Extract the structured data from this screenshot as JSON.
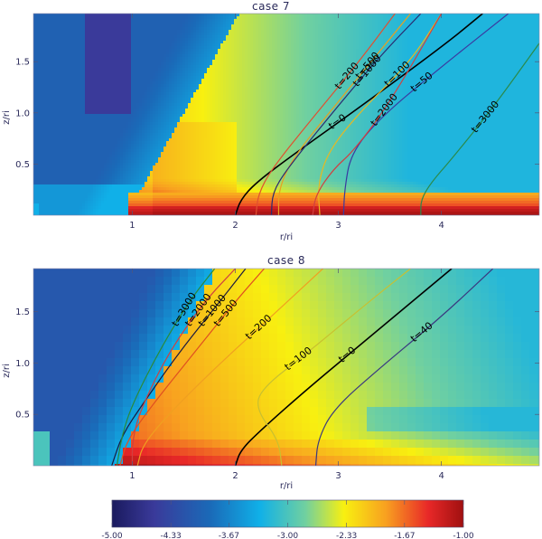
{
  "chart_data": [
    {
      "type": "heatmap",
      "title": "case 7",
      "xlabel": "r/ri",
      "ylabel": "z/ri",
      "xlim": [
        0.04,
        4.95
      ],
      "ylim": [
        0.0,
        1.97
      ],
      "xticks": [
        "1",
        "2",
        "3",
        "4"
      ],
      "xtick_values": [
        1,
        2,
        3,
        4
      ],
      "yticks": [
        "0.5",
        "1.0",
        "1.5"
      ],
      "ytick_values": [
        0.5,
        1.0,
        1.5
      ],
      "field_description": "log-scale color field; blue cone near axis r<1.3 at high z, yellow/orange wedge emanating from r~1, red disk layer z<0.2 for r>1",
      "contours": [
        {
          "label": "t=0",
          "color": "#000000",
          "points": [
            [
              2.0,
              0.0
            ],
            [
              2.05,
              0.15
            ],
            [
              2.2,
              0.32
            ],
            [
              2.6,
              0.62
            ],
            [
              3.2,
              1.05
            ],
            [
              4.05,
              1.68
            ],
            [
              4.4,
              1.97
            ]
          ]
        },
        {
          "label": "t=50",
          "color": "#3a3aa0",
          "points": [
            [
              3.05,
              0.0
            ],
            [
              3.06,
              0.25
            ],
            [
              3.12,
              0.6
            ],
            [
              3.4,
              0.95
            ],
            [
              4.0,
              1.45
            ],
            [
              4.65,
              1.97
            ]
          ]
        },
        {
          "label": "t=100",
          "color": "#e8b820",
          "points": [
            [
              2.82,
              0.0
            ],
            [
              2.8,
              0.3
            ],
            [
              2.9,
              0.62
            ],
            [
              3.2,
              1.0
            ],
            [
              3.7,
              1.5
            ],
            [
              4.0,
              1.97
            ]
          ]
        },
        {
          "label": "t=200",
          "color": "#e05030",
          "points": [
            [
              2.2,
              0.0
            ],
            [
              2.22,
              0.2
            ],
            [
              2.35,
              0.45
            ],
            [
              2.75,
              0.95
            ],
            [
              3.2,
              1.5
            ],
            [
              3.55,
              1.97
            ]
          ]
        },
        {
          "label": "t=500",
          "color": "#e8a020",
          "points": [
            [
              2.42,
              0.0
            ],
            [
              2.42,
              0.25
            ],
            [
              2.55,
              0.55
            ],
            [
              2.95,
              1.05
            ],
            [
              3.4,
              1.6
            ],
            [
              3.7,
              1.97
            ]
          ]
        },
        {
          "label": "t=1000",
          "color": "#2a2a70",
          "points": [
            [
              2.35,
              0.0
            ],
            [
              2.36,
              0.22
            ],
            [
              2.5,
              0.45
            ],
            [
              2.9,
              0.95
            ],
            [
              3.4,
              1.55
            ],
            [
              3.8,
              1.97
            ]
          ]
        },
        {
          "label": "t=2000",
          "color": "#d04040",
          "points": [
            [
              2.75,
              0.0
            ],
            [
              2.78,
              0.2
            ],
            [
              2.95,
              0.45
            ],
            [
              3.15,
              0.63
            ],
            [
              3.5,
              1.1
            ],
            [
              4.0,
              1.97
            ]
          ]
        },
        {
          "label": "t=3000",
          "color": "#2a8a4a",
          "points": [
            [
              3.8,
              0.0
            ],
            [
              3.8,
              0.15
            ],
            [
              3.9,
              0.32
            ],
            [
              4.1,
              0.55
            ],
            [
              4.5,
              1.05
            ],
            [
              4.95,
              1.68
            ]
          ]
        }
      ]
    },
    {
      "type": "heatmap",
      "title": "case 8",
      "xlabel": "r/ri",
      "ylabel": "z/ri",
      "xlim": [
        0.04,
        4.95
      ],
      "ylim": [
        0.0,
        1.92
      ],
      "xticks": [
        "1",
        "2",
        "3",
        "4"
      ],
      "xtick_values": [
        1,
        2,
        3,
        4
      ],
      "yticks": [
        "0.5",
        "1.0",
        "1.5"
      ],
      "ytick_values": [
        0.5,
        1.0,
        1.5
      ],
      "field_description": "coarse-gridded log-scale field; dark blue near axis at high z, yellow/orange/red region for r>1 with red base z<0.3, green-cyan toward large r and z",
      "contours": [
        {
          "label": "t=0",
          "color": "#000000",
          "points": [
            [
              2.0,
              0.0
            ],
            [
              2.05,
              0.15
            ],
            [
              2.25,
              0.35
            ],
            [
              2.7,
              0.75
            ],
            [
              3.3,
              1.25
            ],
            [
              4.1,
              1.92
            ]
          ]
        },
        {
          "label": "t=40",
          "color": "#3a3a80",
          "points": [
            [
              2.78,
              0.0
            ],
            [
              2.8,
              0.25
            ],
            [
              2.95,
              0.55
            ],
            [
              3.4,
              0.95
            ],
            [
              4.0,
              1.45
            ],
            [
              4.5,
              1.92
            ]
          ]
        },
        {
          "label": "t=100",
          "color": "#c8c030",
          "points": [
            [
              2.45,
              0.0
            ],
            [
              2.42,
              0.25
            ],
            [
              2.2,
              0.55
            ],
            [
              2.25,
              0.75
            ],
            [
              2.7,
              1.1
            ],
            [
              3.3,
              1.6
            ],
            [
              3.7,
              1.92
            ]
          ]
        },
        {
          "label": "t=200",
          "color": "#f0a020",
          "points": [
            [
              1.05,
              0.0
            ],
            [
              1.1,
              0.2
            ],
            [
              1.35,
              0.5
            ],
            [
              1.8,
              0.95
            ],
            [
              2.4,
              1.5
            ],
            [
              2.85,
              1.92
            ]
          ]
        },
        {
          "label": "t=500",
          "color": "#e05020",
          "points": [
            [
              0.88,
              0.0
            ],
            [
              0.95,
              0.25
            ],
            [
              1.2,
              0.6
            ],
            [
              1.6,
              1.1
            ],
            [
              2.0,
              1.6
            ],
            [
              2.28,
              1.92
            ]
          ]
        },
        {
          "label": "t=1000",
          "color": "#1a1a40",
          "points": [
            [
              0.8,
              0.0
            ],
            [
              0.9,
              0.3
            ],
            [
              1.1,
              0.6
            ],
            [
              1.45,
              1.1
            ],
            [
              1.85,
              1.6
            ],
            [
              2.1,
              1.92
            ]
          ]
        },
        {
          "label": "t=2000",
          "color": "#d04040",
          "points": [
            [
              1.0,
              0.0
            ],
            [
              1.0,
              0.25
            ],
            [
              1.08,
              0.55
            ],
            [
              1.35,
              1.1
            ],
            [
              1.7,
              1.6
            ],
            [
              2.0,
              1.92
            ]
          ]
        },
        {
          "label": "t=3000",
          "color": "#2a8a3a",
          "points": [
            [
              0.85,
              0.0
            ],
            [
              0.9,
              0.3
            ],
            [
              1.0,
              0.6
            ],
            [
              1.25,
              1.1
            ],
            [
              1.55,
              1.6
            ],
            [
              1.8,
              1.92
            ]
          ]
        }
      ]
    },
    {
      "type": "colorbar",
      "min": -5.0,
      "max": -1.0,
      "tick_labels": [
        "-5.00",
        "-4.33",
        "-3.67",
        "-3.00",
        "-2.33",
        "-1.67",
        "-1.00"
      ],
      "tick_values": [
        -5.0,
        -4.33,
        -3.67,
        -3.0,
        -2.33,
        -1.67,
        -1.0
      ],
      "colormap_stops": [
        "#1a1a5e",
        "#3a3a9a",
        "#1a6ab8",
        "#10b0e8",
        "#70d0a0",
        "#f8f010",
        "#f8a020",
        "#e82828",
        "#a01010"
      ]
    }
  ],
  "panels": [
    {
      "title": "case 7",
      "xlabel": "r/ri",
      "ylabel": "z/ri"
    },
    {
      "title": "case 8",
      "xlabel": "r/ri",
      "ylabel": "z/ri"
    }
  ],
  "colorbar": {
    "labels": [
      "-5.00",
      "-4.33",
      "-3.67",
      "-3.00",
      "-2.33",
      "-1.67",
      "-1.00"
    ]
  }
}
